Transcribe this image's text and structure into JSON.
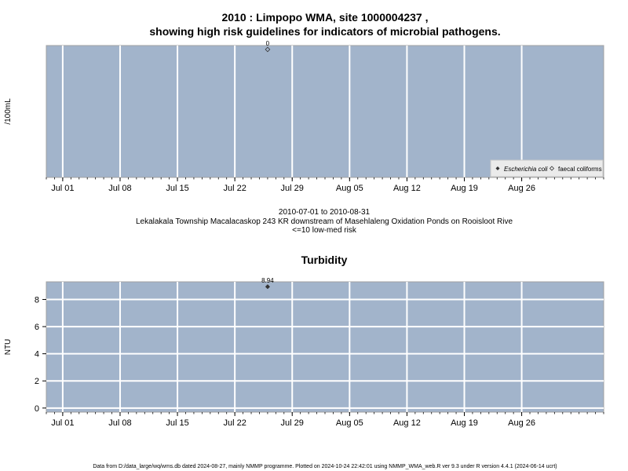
{
  "main_title": {
    "line1": "2010 : Limpopo WMA, site 1000004237 ,",
    "line2": "showing high risk guidelines for indicators of microbial pathogens."
  },
  "footer": "Data from D:/data_large/wq/wms.db dated 2024-08-27, mainly NMMP programme. Plotted on 2024-10-24 22:42:01 using NMMP_WMA_web.R ver 9.3 under R version 4.4.1 (2024-06-14 ucrt)",
  "colors": {
    "panel_bg": "#a2b4cb",
    "grid": "#ffffff",
    "panel_border": "#a0a0a0",
    "point": "#333333"
  },
  "chart_data": [
    {
      "type": "scatter",
      "title": "",
      "xlabel": "",
      "ylabel": "/100mL",
      "x_ticks": [
        "Jul 01",
        "Jul 08",
        "Jul 15",
        "Jul 22",
        "Jul 29",
        "Aug 05",
        "Aug 12",
        "Aug 19",
        "Aug 26"
      ],
      "x_range": [
        "2010-06-29",
        "2010-09-05"
      ],
      "y_ticks": [],
      "grid": true,
      "legend": {
        "placement": "bottom-right",
        "entries": [
          "Escherichia coli",
          "faecal coliforms"
        ]
      },
      "series": [
        {
          "name": "faecal coliforms",
          "marker": "open-diamond",
          "points": [
            {
              "x": "2010-07-26",
              "y": 0,
              "label": "0"
            }
          ]
        },
        {
          "name": "Escherichia coli",
          "marker": "filled-diamond",
          "points": []
        }
      ],
      "notes": {
        "period": "2010-07-01 to 2010-08-31",
        "site": "Lekalakala Township Macalacaskop 243 KR downstream of Masehlaleng Oxidation Ponds on Rooisloot Rive",
        "risk": "<=10 low-med risk"
      }
    },
    {
      "type": "scatter",
      "title": "Turbidity",
      "xlabel": "",
      "ylabel": "NTU",
      "x_ticks": [
        "Jul 01",
        "Jul 08",
        "Jul 15",
        "Jul 22",
        "Jul 29",
        "Aug 05",
        "Aug 12",
        "Aug 19",
        "Aug 26"
      ],
      "x_range": [
        "2010-06-29",
        "2010-09-05"
      ],
      "y_ticks": [
        "0",
        "2",
        "4",
        "6",
        "8"
      ],
      "ylim": [
        -0.3,
        9.3
      ],
      "grid": true,
      "series": [
        {
          "name": "",
          "marker": "filled-diamond",
          "points": [
            {
              "x": "2010-07-26",
              "y": 8.94,
              "label": "8.94"
            }
          ]
        }
      ]
    }
  ]
}
